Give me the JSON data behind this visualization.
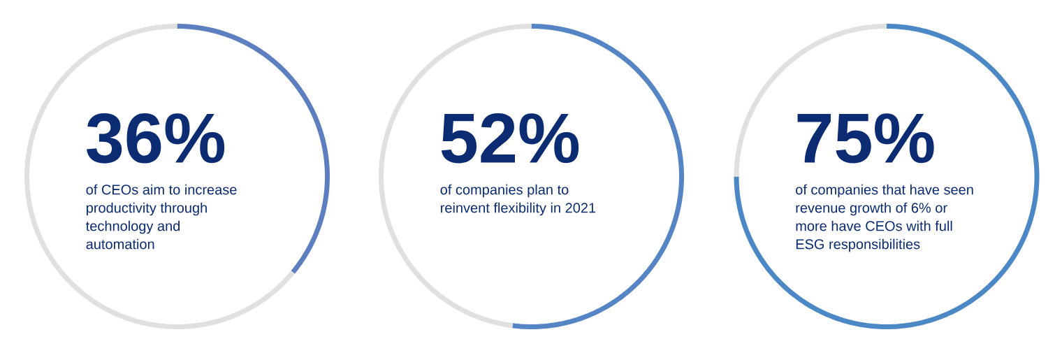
{
  "chart_data": [
    {
      "type": "donut",
      "title": "36%",
      "subtitle": "of CEOs aim to increase productivity through technology and automation",
      "categories": [
        null,
        null
      ],
      "values": [
        36,
        64
      ],
      "colors": [
        "#5d7fc0",
        "#e0e0e0"
      ]
    },
    {
      "type": "donut",
      "title": "52%",
      "subtitle": "of companies plan to reinvent flexibility in 2021",
      "categories": [
        null,
        null
      ],
      "values": [
        52,
        48
      ],
      "colors": [
        "#5585c4",
        "#e0e0e0"
      ]
    },
    {
      "type": "donut",
      "title": "75%",
      "subtitle": "of companies that have seen revenue growth of 6% or more have CEOs with full ESG responsibilities",
      "categories": [
        null,
        null
      ],
      "values": [
        75,
        25
      ],
      "colors": [
        "#4d88c6",
        "#e0e0e0"
      ]
    }
  ]
}
